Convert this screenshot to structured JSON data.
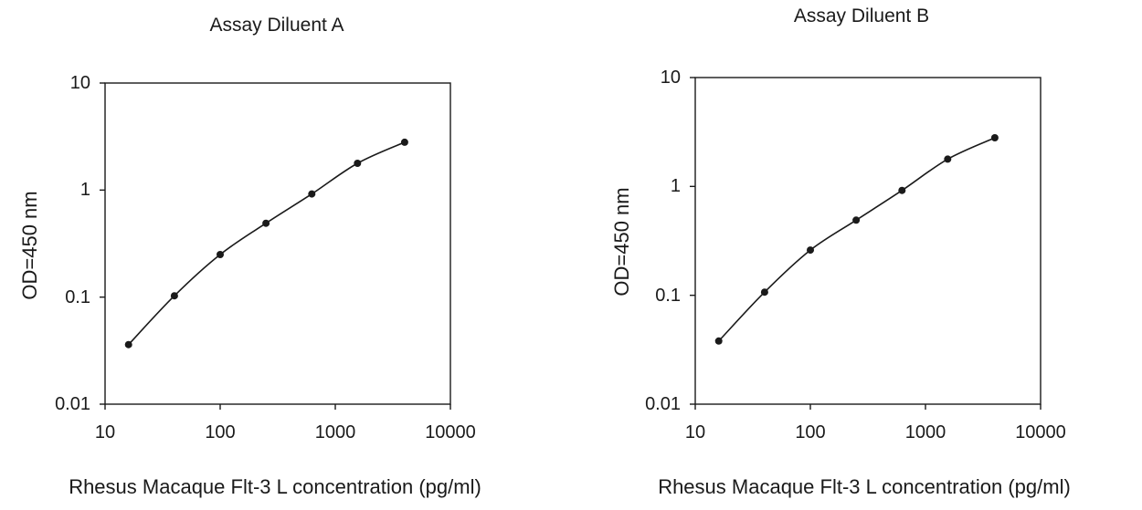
{
  "chart_data": [
    {
      "type": "line",
      "title": "Assay Diluent A",
      "xlabel": "Rhesus  Macaque Flt-3 L concentration (pg/ml)",
      "ylabel": "OD=450 nm",
      "xscale": "log",
      "yscale": "log",
      "xlim": [
        10,
        10000
      ],
      "ylim": [
        0.01,
        10
      ],
      "xticks": [
        "10",
        "100",
        "1000",
        "10000"
      ],
      "yticks": [
        "10",
        "1",
        "0.1",
        "0.01"
      ],
      "grid": false,
      "series": [
        {
          "x": [
            16,
            40,
            100,
            250,
            625,
            1560,
            4000
          ],
          "y": [
            0.036,
            0.103,
            0.25,
            0.49,
            0.92,
            1.78,
            2.8
          ]
        }
      ]
    },
    {
      "type": "line",
      "title": "Assay Diluent B",
      "xlabel": "Rhesus  Macaque Flt-3 L concentration (pg/ml)",
      "ylabel": "OD=450 nm",
      "xscale": "log",
      "yscale": "log",
      "xlim": [
        10,
        10000
      ],
      "ylim": [
        0.01,
        10
      ],
      "xticks": [
        "10",
        "100",
        "1000",
        "10000"
      ],
      "yticks": [
        "10",
        "1",
        "0.1",
        "0.01"
      ],
      "grid": false,
      "series": [
        {
          "x": [
            16,
            40,
            100,
            250,
            625,
            1560,
            4000
          ],
          "y": [
            0.038,
            0.107,
            0.26,
            0.49,
            0.92,
            1.78,
            2.8
          ]
        }
      ]
    }
  ]
}
